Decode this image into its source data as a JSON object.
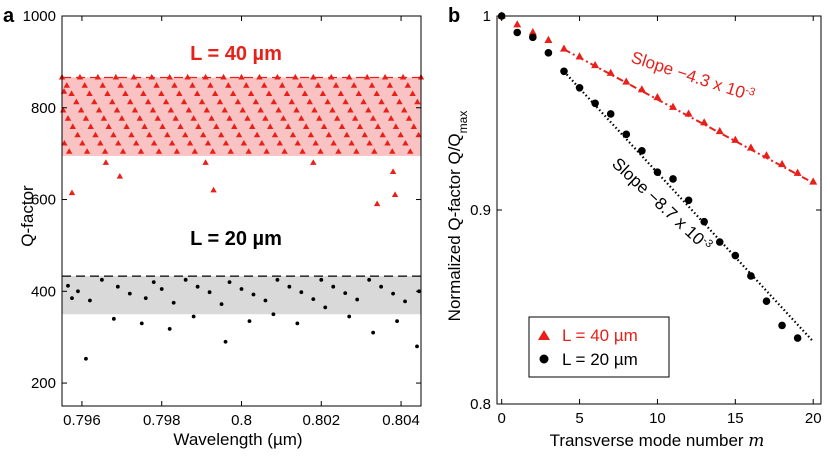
{
  "colors": {
    "red": "#e8201a",
    "black": "#000000",
    "red_band": "#f9c3c3",
    "gray_band": "#d9d9d9"
  },
  "chart_data": [
    {
      "panel_label": "a",
      "type": "scatter",
      "xlabel": "Wavelength (µm)",
      "ylabel": "Q-factor",
      "xlim": [
        0.7955,
        0.8045
      ],
      "ylim": [
        150,
        1000
      ],
      "xticks": [
        0.796,
        0.798,
        0.8,
        0.802,
        0.804
      ],
      "xtick_labels": [
        "0.796",
        "0.798",
        "0.8",
        "0.802",
        "0.804"
      ],
      "yticks": [
        200,
        400,
        600,
        800,
        1000
      ],
      "ytick_labels": [
        "200",
        "400",
        "600",
        "800",
        "1000"
      ],
      "bands": [
        {
          "name": "L = 40 µm",
          "ymin": 695,
          "ymax": 866,
          "dashed_max": 866,
          "color": "red"
        },
        {
          "name": "L = 20 µm",
          "ymin": 350,
          "ymax": 433,
          "dashed_max": 433,
          "color": "black"
        }
      ],
      "annotations": [
        "L = 40 µm",
        "L = 20 µm"
      ],
      "series": [
        {
          "name": "L = 40 µm",
          "marker": "triangle",
          "color": "red",
          "x": [
            0.79555,
            0.79575,
            0.7966,
            0.79695,
            0.7991,
            0.7993,
            0.8018,
            0.8034,
            0.8038,
            0.80385
          ],
          "y": [
            835,
            614,
            680,
            650,
            680,
            620,
            680,
            590,
            660,
            610
          ],
          "lattice": {
            "y_lo": 695,
            "y_hi": 866,
            "x_step_per_row": 0.00012,
            "row_gap": 18,
            "row_x_step": 0.00045
          }
        },
        {
          "name": "L = 20 µm",
          "marker": "circle",
          "color": "black",
          "x": [
            0.79565,
            0.7959,
            0.7962,
            0.7965,
            0.7969,
            0.7972,
            0.7976,
            0.7978,
            0.798,
            0.7983,
            0.7986,
            0.7989,
            0.7992,
            0.7995,
            0.7997,
            0.8,
            0.8003,
            0.8006,
            0.8009,
            0.8012,
            0.8015,
            0.8018,
            0.802,
            0.8023,
            0.8026,
            0.8029,
            0.8032,
            0.8035,
            0.8038,
            0.8041,
            0.80445,
            0.79575,
            0.7961,
            0.7968,
            0.7975,
            0.7982,
            0.7988,
            0.7996,
            0.8002,
            0.8008,
            0.8014,
            0.8021,
            0.8027,
            0.8033,
            0.8039,
            0.8044
          ],
          "y": [
            412,
            400,
            380,
            425,
            410,
            395,
            385,
            420,
            405,
            375,
            425,
            410,
            398,
            372,
            420,
            405,
            393,
            380,
            425,
            410,
            398,
            383,
            425,
            410,
            396,
            382,
            425,
            410,
            395,
            378,
            400,
            385,
            253,
            340,
            330,
            318,
            345,
            290,
            335,
            350,
            330,
            365,
            345,
            310,
            335,
            280
          ]
        }
      ]
    },
    {
      "panel_label": "b",
      "type": "scatter",
      "xlabel_prefix": "Transverse mode number ",
      "xlabel_var": "m",
      "ylabel_prefix": "Normalized Q-factor Q/Q",
      "ylabel_sub": "max",
      "xlim": [
        -0.3,
        20.5
      ],
      "ylim": [
        0.8,
        1.0
      ],
      "xticks": [
        0,
        5,
        10,
        15,
        20
      ],
      "xtick_labels": [
        "0",
        "5",
        "10",
        "15",
        "20"
      ],
      "yticks": [
        0.8,
        0.9,
        1.0
      ],
      "ytick_labels": [
        "0.8",
        "0.9",
        "1"
      ],
      "series": [
        {
          "name": "L = 40 µm",
          "legend": "L = 40 µm",
          "marker": "triangle",
          "color": "red",
          "x": [
            0,
            1,
            2,
            3,
            4,
            5,
            6,
            7,
            8,
            9,
            10,
            11,
            12,
            13,
            14,
            15,
            16,
            17,
            18,
            19,
            20
          ],
          "y": [
            1.0,
            0.9955,
            0.9915,
            0.9875,
            0.983,
            0.979,
            0.9745,
            0.9705,
            0.966,
            0.962,
            0.958,
            0.953,
            0.9495,
            0.945,
            0.9405,
            0.936,
            0.932,
            0.928,
            0.9235,
            0.919,
            0.9145
          ]
        },
        {
          "name": "L = 20 µm",
          "legend": "L = 20 µm",
          "marker": "circle",
          "color": "black",
          "x": [
            0,
            1,
            2,
            3,
            4,
            5,
            6,
            7,
            8,
            9,
            10,
            11,
            12,
            13,
            14,
            15,
            16,
            17,
            18,
            19
          ],
          "y": [
            1.0,
            0.9915,
            0.989,
            0.981,
            0.9715,
            0.963,
            0.955,
            0.9495,
            0.939,
            0.9305,
            0.9195,
            0.916,
            0.905,
            0.894,
            0.8835,
            0.8765,
            0.866,
            0.853,
            0.8405,
            0.834
          ]
        }
      ],
      "fits": [
        {
          "color": "red",
          "style": "dash-dot",
          "slope": -0.0043,
          "intercept": 1.0,
          "x_from": 4,
          "x_to": 20
        },
        {
          "color": "black",
          "style": "dotted",
          "slope": -0.0087,
          "intercept": 1.0062,
          "x_from": 4,
          "x_to": 20
        }
      ],
      "fit_labels": [
        {
          "prefix": "Slope −4.3 x 10",
          "exp": "-3",
          "color": "red"
        },
        {
          "prefix": "Slope −8.7 x 10",
          "exp": "-3",
          "color": "black"
        }
      ],
      "legend_position": "bottom-left"
    }
  ]
}
